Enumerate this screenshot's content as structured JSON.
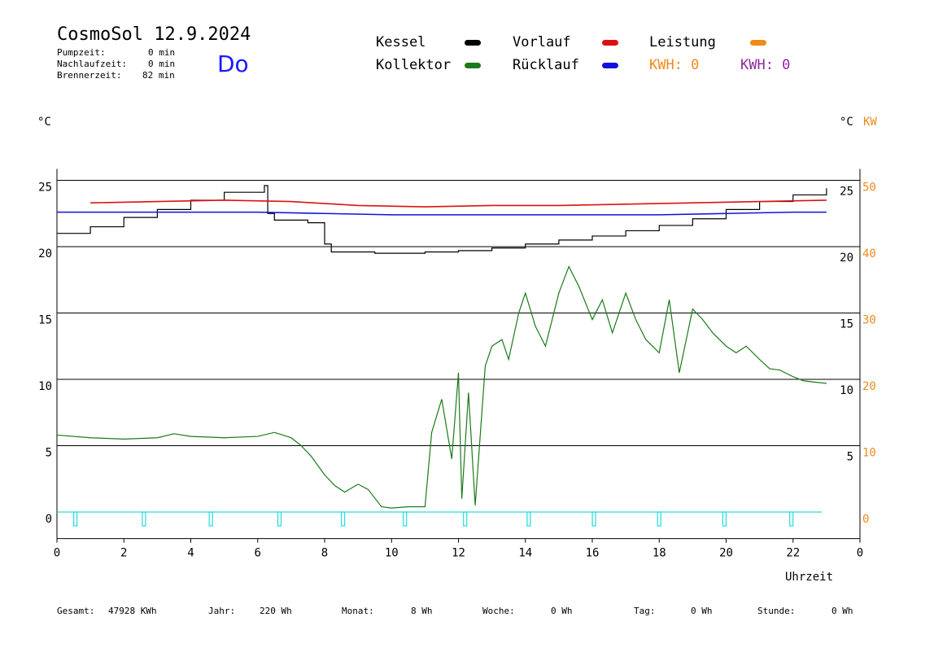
{
  "header": {
    "title": "CosmoSol 12.9.2024",
    "day": "Do",
    "stats": [
      {
        "label": "Pumpzeit:",
        "value": "0 min"
      },
      {
        "label": "Nachlaufzeit:",
        "value": "0 min"
      },
      {
        "label": "Brennerzeit:",
        "value": "82 min"
      }
    ]
  },
  "legend": {
    "kessel": {
      "label": "Kessel",
      "color": "#000000"
    },
    "kollektor": {
      "label": "Kollektor",
      "color": "#1a7a1a"
    },
    "vorlauf": {
      "label": "Vorlauf",
      "color": "#dd1111"
    },
    "ruecklauf": {
      "label": "Rücklauf",
      "color": "#1111dd"
    },
    "leistung": {
      "label": "Leistung",
      "color": "#f08a1a"
    },
    "kwh_orange": "KWH: 0",
    "kwh_purple": "KWH: 0",
    "kwh_orange_color": "#f08a1a",
    "kwh_purple_color": "#8a2a9a"
  },
  "axes": {
    "left_unit": "°C",
    "right_unit_c": "°C",
    "right_unit_kw": "KW",
    "xlabel": "Uhrzeit"
  },
  "footer": [
    {
      "label": "Gesamt:",
      "value": "47928 KWh"
    },
    {
      "label": "Jahr:",
      "value": "220 Wh"
    },
    {
      "label": "Monat:",
      "value": "8 Wh"
    },
    {
      "label": "Woche:",
      "value": "0 Wh"
    },
    {
      "label": "Tag:",
      "value": "0 Wh"
    },
    {
      "label": "Stunde:",
      "value": "0 Wh"
    }
  ],
  "chart_data": {
    "type": "line",
    "xlim": [
      0,
      24
    ],
    "ylim": [
      -2,
      25
    ],
    "x_ticks": [
      "0",
      "2",
      "4",
      "6",
      "8",
      "10",
      "12",
      "14",
      "16",
      "18",
      "20",
      "22",
      "0"
    ],
    "y_left_ticks": [
      0,
      5,
      10,
      15,
      20,
      25
    ],
    "y_right_c_ticks": [
      5,
      10,
      15,
      20,
      25
    ],
    "y_right_kw_ticks": [
      0,
      10,
      20,
      30,
      40,
      50
    ],
    "gridlines_y": [
      5,
      10,
      15,
      20,
      25
    ],
    "series": [
      {
        "name": "Kessel",
        "color": "#000000",
        "x": [
          0,
          1,
          2,
          3,
          4,
          5,
          6.2,
          6.3,
          6.5,
          7,
          7.5,
          8,
          8.2,
          9,
          9.5,
          10,
          11,
          12,
          13,
          14,
          15,
          16,
          17,
          18,
          19,
          20,
          21,
          22,
          23
        ],
        "y": [
          21,
          21.5,
          22.2,
          22.8,
          23.5,
          24.1,
          24.6,
          22.5,
          22,
          22,
          21.8,
          20.2,
          19.6,
          19.6,
          19.5,
          19.5,
          19.6,
          19.7,
          19.9,
          20.2,
          20.5,
          20.8,
          21.2,
          21.6,
          22.1,
          22.8,
          23.4,
          23.9,
          24.4
        ]
      },
      {
        "name": "Vorlauf",
        "color": "#dd1111",
        "x": [
          1,
          3,
          5,
          7,
          9,
          11,
          13,
          15,
          17,
          19,
          21,
          23
        ],
        "y": [
          23.3,
          23.4,
          23.5,
          23.4,
          23.1,
          23,
          23.1,
          23.1,
          23.2,
          23.3,
          23.4,
          23.5
        ]
      },
      {
        "name": "Rücklauf",
        "color": "#1111dd",
        "x": [
          0,
          2,
          4,
          6,
          8,
          10,
          12,
          14,
          16,
          18,
          20,
          22,
          23
        ],
        "y": [
          22.6,
          22.6,
          22.6,
          22.6,
          22.5,
          22.4,
          22.4,
          22.4,
          22.4,
          22.4,
          22.5,
          22.6,
          22.6
        ]
      },
      {
        "name": "Kollektor",
        "color": "#1a7a1a",
        "x": [
          0,
          1,
          2,
          3,
          3.5,
          4,
          5,
          6,
          6.5,
          7,
          7.3,
          7.6,
          8,
          8.3,
          8.6,
          9,
          9.3,
          9.7,
          10,
          10.5,
          11,
          11.2,
          11.5,
          11.8,
          12,
          12.1,
          12.3,
          12.5,
          12.8,
          13,
          13.3,
          13.5,
          13.8,
          14,
          14.3,
          14.6,
          15,
          15.3,
          15.6,
          16,
          16.3,
          16.6,
          17,
          17.3,
          17.6,
          18,
          18.3,
          18.6,
          19,
          19.3,
          19.6,
          20,
          20.3,
          20.6,
          21,
          21.3,
          21.6,
          22,
          22.3,
          22.6,
          23
        ],
        "y": [
          5.8,
          5.6,
          5.5,
          5.6,
          5.9,
          5.7,
          5.6,
          5.7,
          6,
          5.6,
          5,
          4.2,
          2.8,
          2,
          1.5,
          2.1,
          1.7,
          0.4,
          0.3,
          0.4,
          0.4,
          6,
          8.5,
          4,
          10.5,
          1,
          9,
          0.5,
          11,
          12.5,
          13,
          11.5,
          15,
          16.5,
          14,
          12.5,
          16.5,
          18.5,
          17,
          14.5,
          16,
          13.5,
          16.5,
          14.5,
          13,
          12,
          16,
          10.5,
          15.3,
          14.5,
          13.5,
          12.5,
          12,
          12.5,
          11.5,
          10.8,
          10.7,
          10.2,
          9.9,
          9.8,
          9.7
        ]
      },
      {
        "name": "Pumpe",
        "color": "#22dddd",
        "pulses_x": [
          0.55,
          2.6,
          4.6,
          6.65,
          8.55,
          10.4,
          12.2,
          14.1,
          16.05,
          18.0,
          19.95,
          21.95
        ]
      }
    ]
  }
}
